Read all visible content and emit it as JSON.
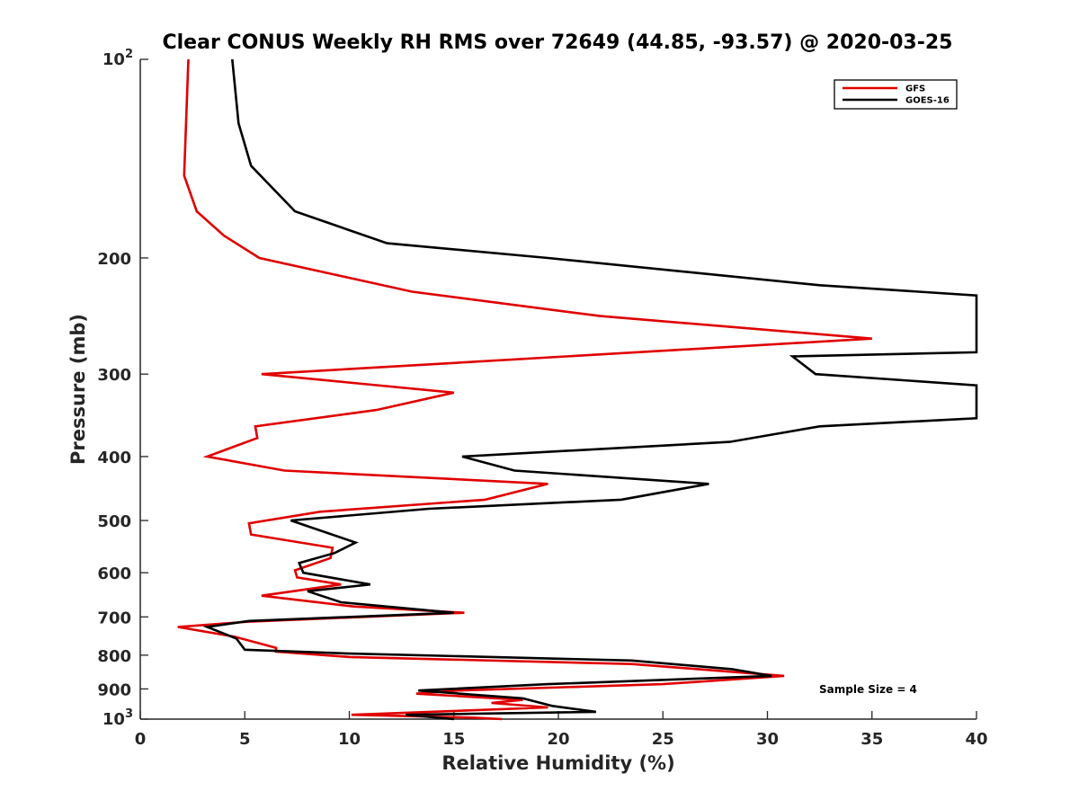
{
  "chart_data": {
    "type": "line",
    "title": "Clear CONUS Weekly RH RMS over 72649 (44.85, -93.57) @ 2020-03-25",
    "xlabel": "Relative Humidity (%)",
    "ylabel": "Pressure (mb)",
    "xlim": [
      0,
      40
    ],
    "ylim": [
      100,
      1000
    ],
    "yscale": "log",
    "y_reversed": true,
    "grid": false,
    "legend_position": "top-right",
    "x_ticks": [
      "0",
      "5",
      "10",
      "15",
      "20",
      "25",
      "30",
      "35",
      "40"
    ],
    "y_ticks": [
      {
        "value": 100,
        "base": "10",
        "exp": "2"
      },
      {
        "value": 200,
        "label": "200"
      },
      {
        "value": 300,
        "label": "300"
      },
      {
        "value": 400,
        "label": "400"
      },
      {
        "value": 500,
        "label": "500"
      },
      {
        "value": 600,
        "label": "600"
      },
      {
        "value": 700,
        "label": "700"
      },
      {
        "value": 800,
        "label": "800"
      },
      {
        "value": 900,
        "label": "900"
      },
      {
        "value": 1000,
        "base": "10",
        "exp": "3"
      }
    ],
    "annotation": "Sample Size = 4",
    "series": [
      {
        "name": "GFS",
        "color": "#e00000",
        "points": [
          [
            2.3,
            100
          ],
          [
            2.1,
            150
          ],
          [
            2.7,
            170
          ],
          [
            4.0,
            185
          ],
          [
            5.7,
            200
          ],
          [
            13.0,
            225
          ],
          [
            22.0,
            245
          ],
          [
            35.0,
            265
          ],
          [
            5.8,
            300
          ],
          [
            15.0,
            320
          ],
          [
            11.3,
            340
          ],
          [
            5.5,
            360
          ],
          [
            5.6,
            375
          ],
          [
            3.2,
            400
          ],
          [
            6.9,
            420
          ],
          [
            19.5,
            440
          ],
          [
            16.5,
            465
          ],
          [
            8.6,
            485
          ],
          [
            5.2,
            505
          ],
          [
            5.3,
            525
          ],
          [
            9.2,
            550
          ],
          [
            9.1,
            570
          ],
          [
            7.4,
            595
          ],
          [
            7.5,
            610
          ],
          [
            9.6,
            625
          ],
          [
            5.8,
            650
          ],
          [
            10.2,
            675
          ],
          [
            15.5,
            690
          ],
          [
            5.1,
            712
          ],
          [
            1.8,
            725
          ],
          [
            4.5,
            750
          ],
          [
            6.5,
            780
          ],
          [
            6.5,
            790
          ],
          [
            10.0,
            805
          ],
          [
            23.5,
            825
          ],
          [
            30.8,
            860
          ],
          [
            25.0,
            885
          ],
          [
            15.2,
            905
          ],
          [
            13.2,
            915
          ],
          [
            18.3,
            935
          ],
          [
            16.8,
            945
          ],
          [
            19.5,
            960
          ],
          [
            10.1,
            985
          ],
          [
            16.0,
            995
          ],
          [
            17.3,
            1000
          ]
        ]
      },
      {
        "name": "GOES-16",
        "color": "#000000",
        "points": [
          [
            4.4,
            100
          ],
          [
            4.7,
            125
          ],
          [
            5.3,
            145
          ],
          [
            7.4,
            170
          ],
          [
            11.8,
            190
          ],
          [
            19.5,
            200
          ],
          [
            32.5,
            220
          ],
          [
            40.0,
            228
          ],
          [
            40.0,
            278
          ],
          [
            31.2,
            282
          ],
          [
            32.3,
            300
          ],
          [
            40.0,
            312
          ],
          [
            40.0,
            350
          ],
          [
            32.5,
            360
          ],
          [
            28.2,
            380
          ],
          [
            15.4,
            400
          ],
          [
            17.9,
            420
          ],
          [
            27.2,
            440
          ],
          [
            23.0,
            465
          ],
          [
            13.8,
            480
          ],
          [
            7.2,
            500
          ],
          [
            10.3,
            540
          ],
          [
            9.3,
            560
          ],
          [
            7.6,
            580
          ],
          [
            7.8,
            600
          ],
          [
            11.0,
            625
          ],
          [
            8.0,
            640
          ],
          [
            9.6,
            665
          ],
          [
            15.0,
            690
          ],
          [
            5.2,
            710
          ],
          [
            3.2,
            725
          ],
          [
            4.6,
            755
          ],
          [
            5.0,
            785
          ],
          [
            9.8,
            795
          ],
          [
            23.5,
            815
          ],
          [
            28.3,
            840
          ],
          [
            30.2,
            860
          ],
          [
            19.5,
            885
          ],
          [
            13.3,
            905
          ],
          [
            18.3,
            930
          ],
          [
            19.7,
            955
          ],
          [
            21.8,
            975
          ],
          [
            12.7,
            985
          ],
          [
            15.0,
            1000
          ]
        ]
      }
    ]
  }
}
